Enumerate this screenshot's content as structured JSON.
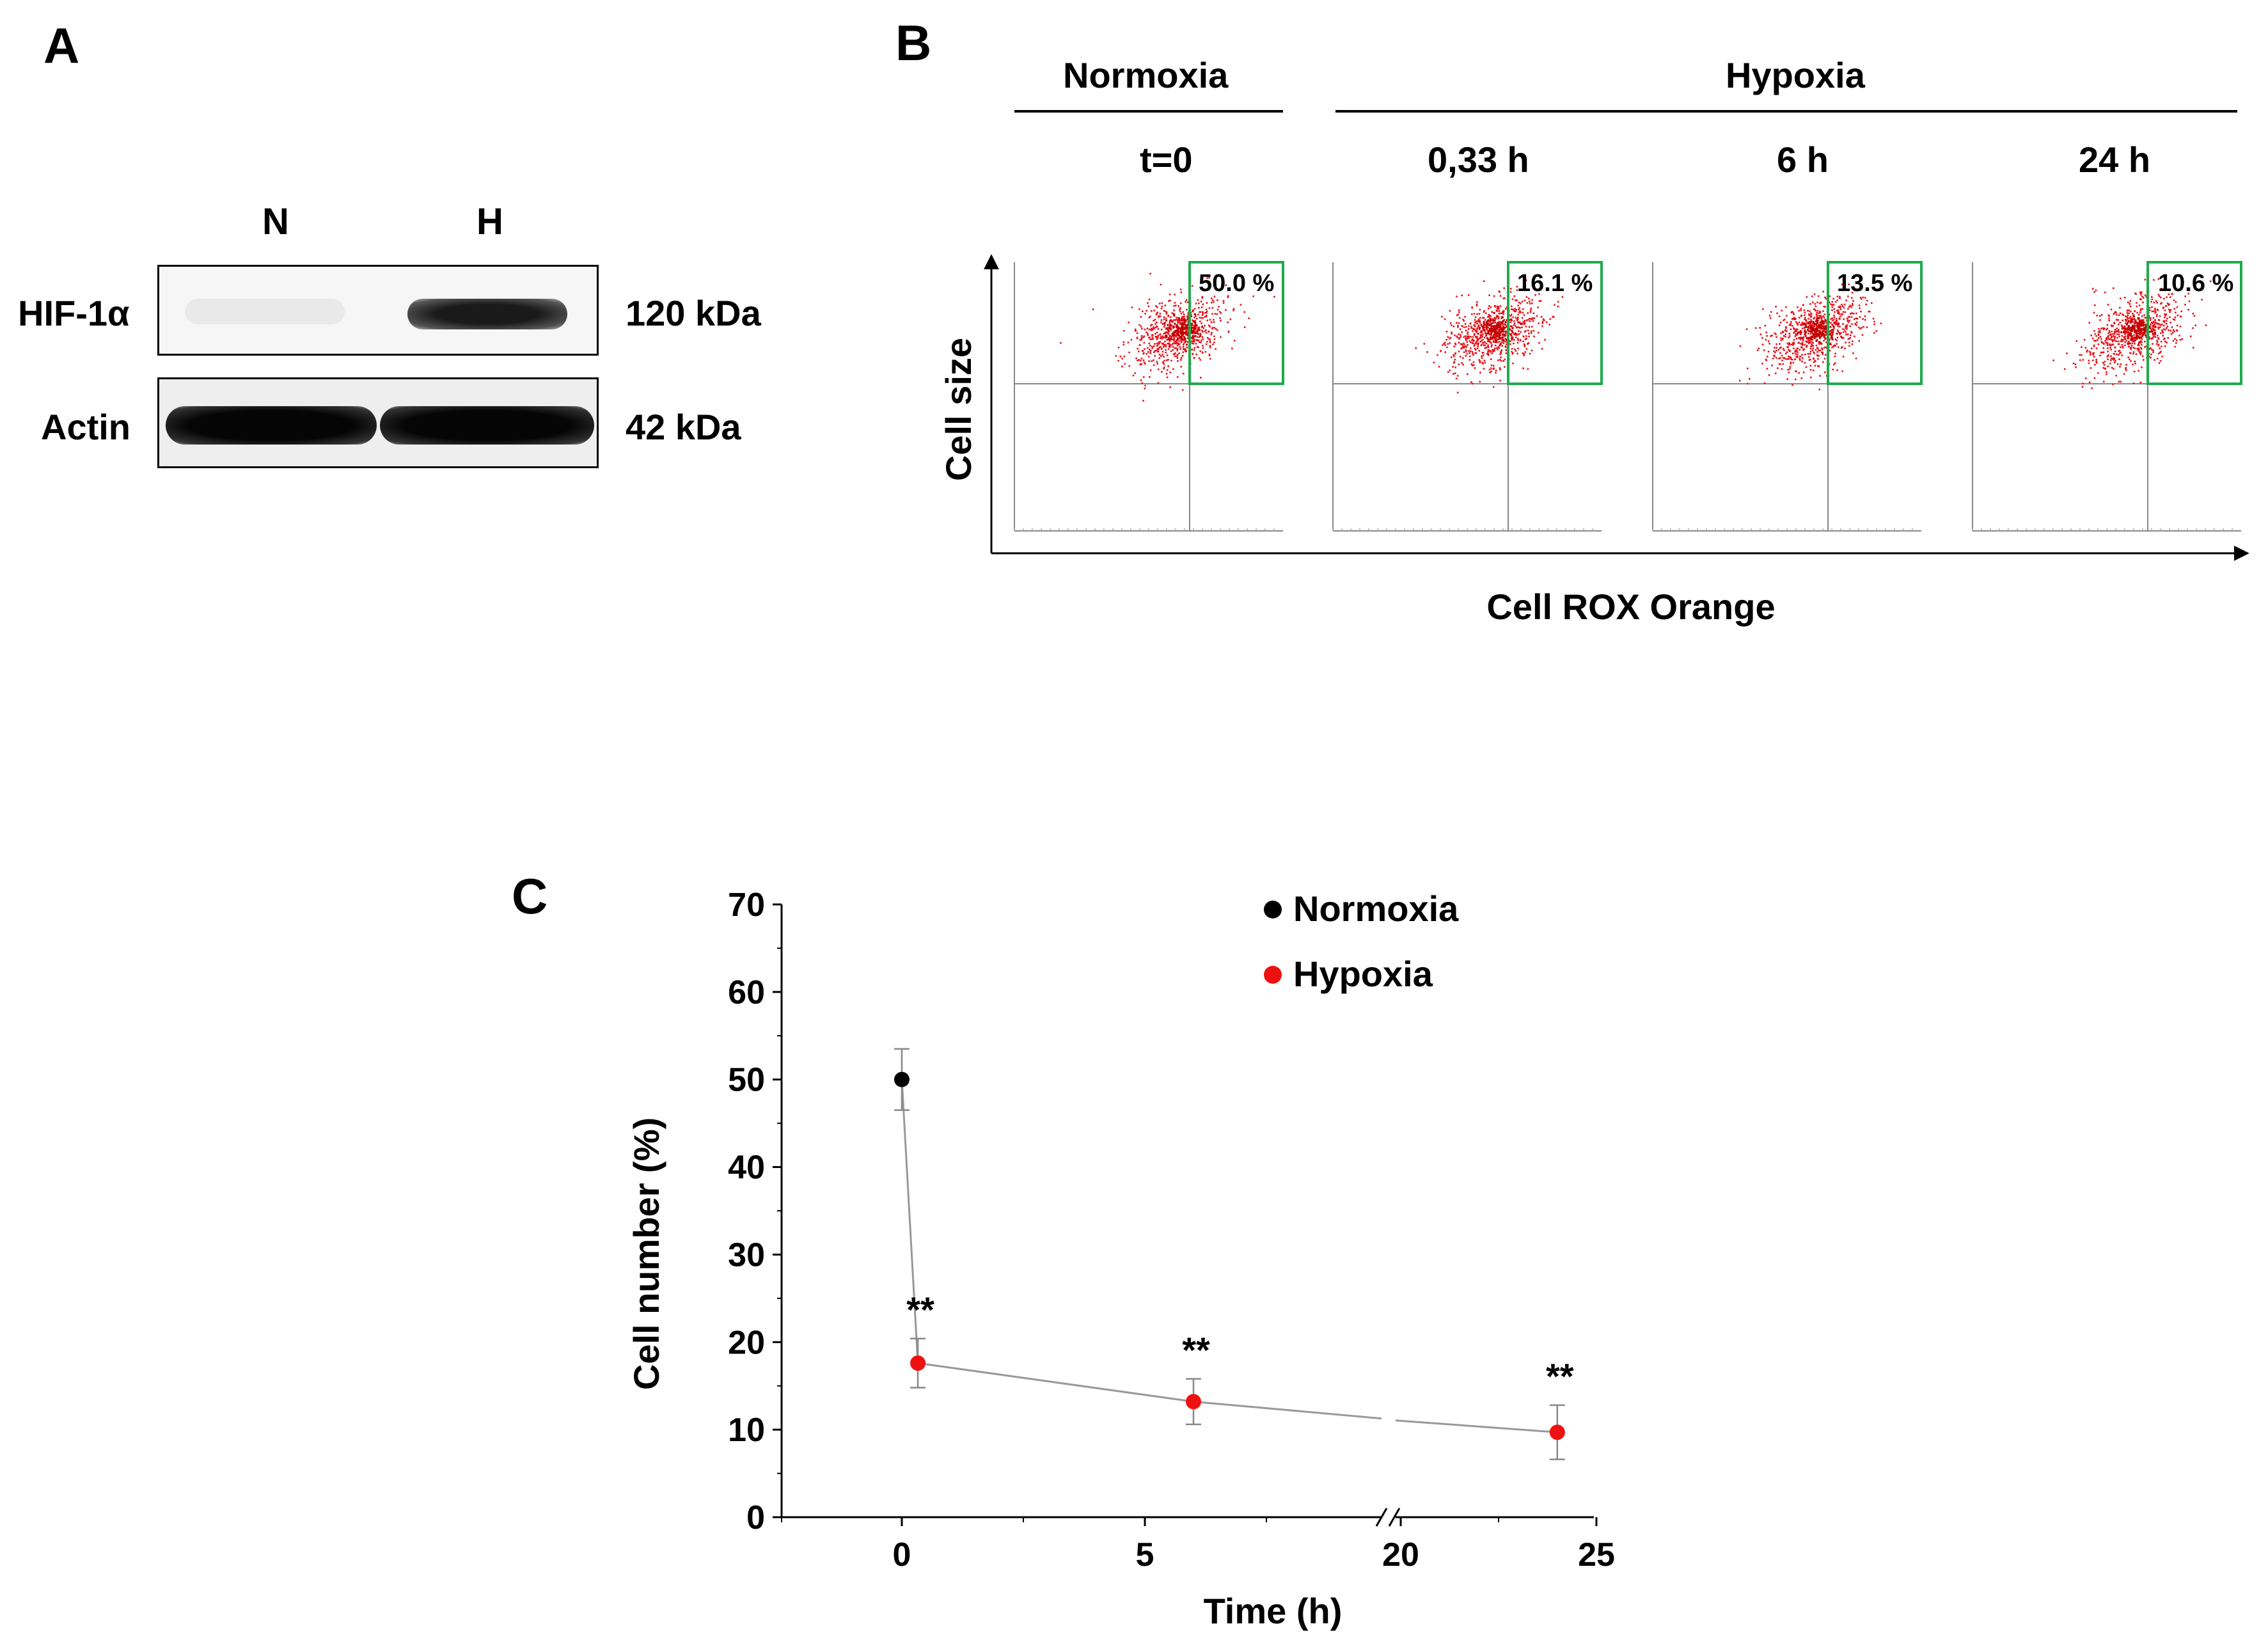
{
  "panel_a": {
    "letter": "A",
    "lanes": [
      "N",
      "H"
    ],
    "rows": [
      {
        "label": "HIF-1α",
        "size": "120 kDa",
        "band_intensity": [
          0.05,
          0.85
        ]
      },
      {
        "label": "Actin",
        "size": "42 kDa",
        "band_intensity": [
          0.95,
          0.95
        ]
      }
    ]
  },
  "panel_b": {
    "letter": "B",
    "group_normoxia": "Normoxia",
    "group_hypoxia": "Hypoxia",
    "ylabel": "Cell size",
    "xlabel": "Cell ROX Orange",
    "plots": [
      {
        "time": "t=0",
        "gate_percent": "50.0 %"
      },
      {
        "time": "0,33 h",
        "gate_percent": "16.1 %"
      },
      {
        "time": "6 h",
        "gate_percent": "13.5 %"
      },
      {
        "time": "24 h",
        "gate_percent": "10.6 %"
      }
    ],
    "dot_color": "#e8121a",
    "gate_color": "#1faa4b"
  },
  "panel_c": {
    "letter": "C"
  },
  "chart_data": {
    "type": "scatter",
    "xlabel": "Time (h)",
    "ylabel": "Cell number (%)",
    "xlim": [
      -2.5,
      25
    ],
    "ylim": [
      0,
      70
    ],
    "x_axis_break": [
      10,
      20
    ],
    "xticks": [
      0,
      5,
      20,
      25
    ],
    "yticks": [
      0,
      10,
      20,
      30,
      40,
      50,
      60,
      70
    ],
    "series": [
      {
        "name": "Normoxia",
        "color": "#000000",
        "points": [
          {
            "x": 0,
            "y": 50,
            "err": 3.5
          }
        ]
      },
      {
        "name": "Hypoxia",
        "color": "#ee1111",
        "points": [
          {
            "x": 0.33,
            "y": 17.6,
            "err": 2.8,
            "annotation": "**"
          },
          {
            "x": 6,
            "y": 13.2,
            "err": 2.6,
            "annotation": "**"
          },
          {
            "x": 24,
            "y": 9.7,
            "err": 3.1,
            "annotation": "**"
          }
        ]
      }
    ],
    "connecting_line_color": "#999999",
    "legend_position": "top-center"
  }
}
